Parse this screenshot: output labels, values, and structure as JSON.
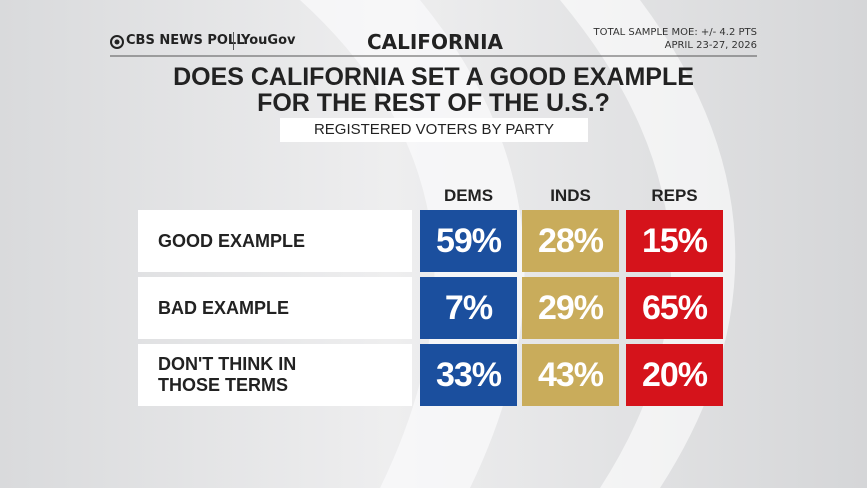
{
  "header": {
    "logo_left": "CBS NEWS POLL",
    "logo_right": "YouGov",
    "region": "CALIFORNIA",
    "moe": "TOTAL SAMPLE MOE: +/- 4.2 PTS",
    "dates": "APRIL 23-27, 2026"
  },
  "title": [
    "DOES CALIFORNIA SET A GOOD EXAMPLE",
    "FOR THE REST OF THE U.S.?"
  ],
  "subtitle": "REGISTERED VOTERS BY PARTY",
  "table": {
    "columns": [
      {
        "name": "DEMS",
        "color": "#1b4f9e"
      },
      {
        "name": "INDS",
        "color": "#c9ac5b"
      },
      {
        "name": "REPS",
        "color": "#d5131b"
      }
    ],
    "rows": [
      {
        "label": [
          "GOOD EXAMPLE"
        ],
        "cells": [
          "59%",
          "28%",
          "15%"
        ]
      },
      {
        "label": [
          "BAD EXAMPLE"
        ],
        "cells": [
          "7%",
          "29%",
          "65%"
        ]
      },
      {
        "label": [
          "DON'T THINK IN",
          "THOSE TERMS"
        ],
        "cells": [
          "33%",
          "43%",
          "20%"
        ]
      }
    ]
  }
}
